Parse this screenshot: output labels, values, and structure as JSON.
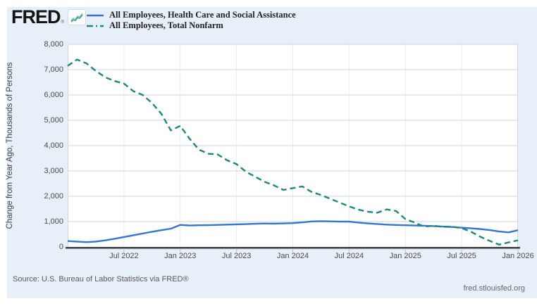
{
  "brand": {
    "logo_text": "FRED",
    "registered_mark": "®"
  },
  "legend": [
    {
      "label": "All Employees, Health Care and Social Assistance",
      "color": "#3575d2",
      "style": "solid"
    },
    {
      "label": "All Employees, Total Nonfarm",
      "color": "#1d887b",
      "style": "dash-dot"
    }
  ],
  "footer": {
    "source": "Source: U.S. Bureau of Labor Statistics via FRED®",
    "site": "fred.stlouisfed.org"
  },
  "chart_data": {
    "type": "line",
    "title": "",
    "xlabel": "",
    "ylabel": "Change from Year Ago, Thousands of Persons",
    "ylim": [
      0,
      8000
    ],
    "grid": true,
    "legend_position": "top",
    "y_ticks": [
      {
        "v": 0,
        "label": "0"
      },
      {
        "v": 1000,
        "label": "1,000"
      },
      {
        "v": 2000,
        "label": "2,000"
      },
      {
        "v": 3000,
        "label": "3,000"
      },
      {
        "v": 4000,
        "label": "4,000"
      },
      {
        "v": 5000,
        "label": "5,000"
      },
      {
        "v": 6000,
        "label": "6,000"
      },
      {
        "v": 7000,
        "label": "7,000"
      },
      {
        "v": 8000,
        "label": "8,000"
      }
    ],
    "x_ticks": [
      {
        "i": 6,
        "label": "Jul 2022"
      },
      {
        "i": 12,
        "label": "Jan 2023"
      },
      {
        "i": 18,
        "label": "Jul 2023"
      },
      {
        "i": 24,
        "label": "Jan 2024"
      },
      {
        "i": 30,
        "label": "Jul 2024"
      },
      {
        "i": 36,
        "label": "Jan 2025"
      },
      {
        "i": 42,
        "label": "Jul 2025"
      },
      {
        "i": 48,
        "label": "Jan 2026"
      }
    ],
    "x": [
      "Jan 2022",
      "Feb 2022",
      "Mar 2022",
      "Apr 2022",
      "May 2022",
      "Jun 2022",
      "Jul 2022",
      "Aug 2022",
      "Sep 2022",
      "Oct 2022",
      "Nov 2022",
      "Dec 2022",
      "Jan 2023",
      "Feb 2023",
      "Mar 2023",
      "Apr 2023",
      "May 2023",
      "Jun 2023",
      "Jul 2023",
      "Aug 2023",
      "Sep 2023",
      "Oct 2023",
      "Nov 2023",
      "Dec 2023",
      "Jan 2024",
      "Feb 2024",
      "Mar 2024",
      "Apr 2024",
      "May 2024",
      "Jun 2024",
      "Jul 2024",
      "Aug 2024",
      "Sep 2024",
      "Oct 2024",
      "Nov 2024",
      "Dec 2024",
      "Jan 2025",
      "Feb 2025",
      "Mar 2025",
      "Apr 2025",
      "May 2025",
      "Jun 2025",
      "Jul 2025",
      "Aug 2025",
      "Sep 2025",
      "Oct 2025",
      "Nov 2025",
      "Dec 2025",
      "Jan 2026"
    ],
    "series": [
      {
        "name": "All Employees, Health Care and Social Assistance",
        "color": "#3575d2",
        "dash": null,
        "values": [
          230,
          210,
          190,
          210,
          260,
          320,
          390,
          460,
          530,
          600,
          660,
          720,
          870,
          845,
          855,
          860,
          870,
          880,
          890,
          900,
          915,
          925,
          920,
          930,
          940,
          970,
          1005,
          1015,
          1010,
          1000,
          1000,
          960,
          930,
          905,
          880,
          865,
          855,
          845,
          835,
          820,
          805,
          785,
          760,
          735,
          705,
          665,
          610,
          575,
          660
        ]
      },
      {
        "name": "All Employees, Total Nonfarm",
        "color": "#1d887b",
        "dash": "8 5",
        "values": [
          7150,
          7400,
          7250,
          6950,
          6700,
          6550,
          6450,
          6150,
          6000,
          5680,
          5250,
          4600,
          4780,
          4270,
          3840,
          3680,
          3650,
          3420,
          3270,
          2970,
          2770,
          2570,
          2430,
          2250,
          2320,
          2390,
          2170,
          2050,
          1900,
          1750,
          1600,
          1470,
          1390,
          1350,
          1480,
          1420,
          1100,
          960,
          800,
          840,
          790,
          800,
          740,
          600,
          400,
          235,
          90,
          180,
          260
        ]
      }
    ]
  }
}
